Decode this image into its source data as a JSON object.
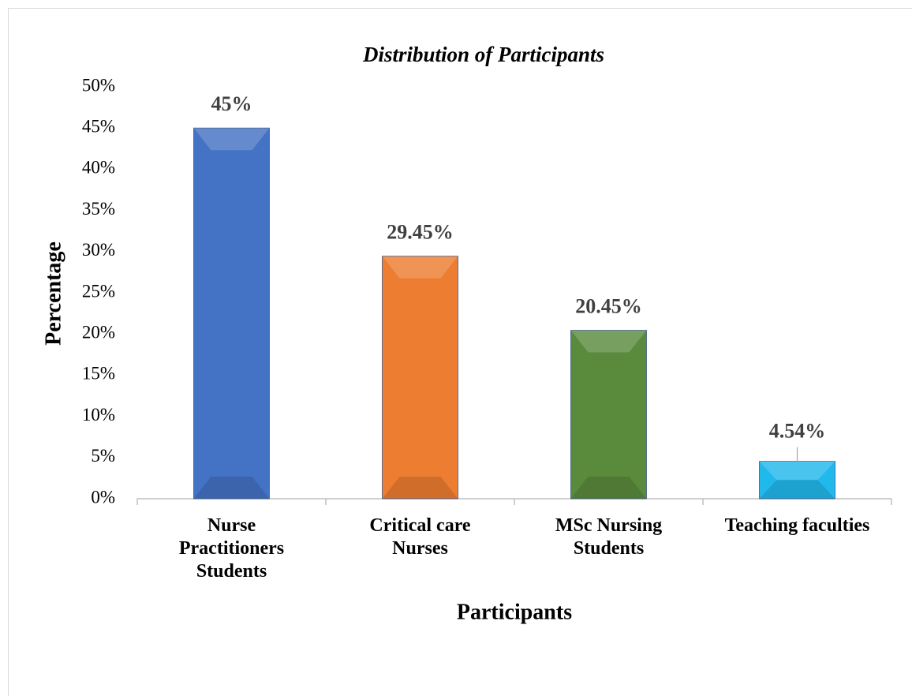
{
  "chart_data": {
    "type": "bar",
    "title": "Distribution of Participants",
    "x_label": "Participants",
    "y_label": "Percentage",
    "categories": [
      "Nurse Practitioners Students",
      "Critical care Nurses",
      "MSc Nursing Students",
      "Teaching faculties"
    ],
    "values": [
      45,
      29.45,
      20.45,
      4.54
    ],
    "value_labels": [
      "45%",
      "29.45%",
      "20.45%",
      "4.54%"
    ],
    "colors": [
      "#4472c4",
      "#ed7d31",
      "#5a8a3c",
      "#21b8ec"
    ],
    "ylim": [
      0,
      50
    ],
    "yticks": [
      {
        "value": 0,
        "label": "0%"
      },
      {
        "value": 5,
        "label": "5%"
      },
      {
        "value": 10,
        "label": "10%"
      },
      {
        "value": 15,
        "label": "15%"
      },
      {
        "value": 20,
        "label": "20%"
      },
      {
        "value": 25,
        "label": "25%"
      },
      {
        "value": 30,
        "label": "30%"
      },
      {
        "value": 35,
        "label": "35%"
      },
      {
        "value": 40,
        "label": "40%"
      },
      {
        "value": 45,
        "label": "45%"
      },
      {
        "value": 50,
        "label": "50%"
      }
    ],
    "grid": false
  }
}
